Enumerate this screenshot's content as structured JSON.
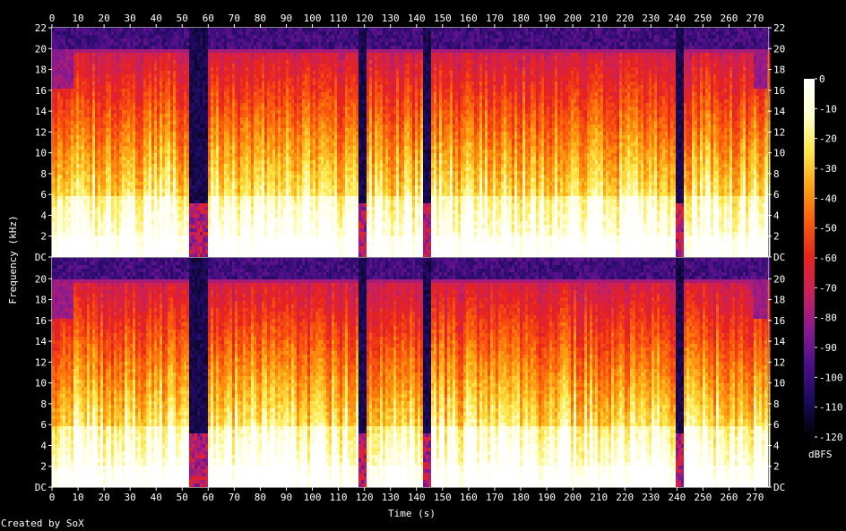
{
  "chart_data": {
    "type": "heatmap",
    "title": "",
    "xlabel": "Time (s)",
    "ylabel": "Frequency (kHz)",
    "xlim": [
      0,
      275
    ],
    "x_ticks": [
      "0",
      "10",
      "20",
      "30",
      "40",
      "50",
      "60",
      "70",
      "80",
      "90",
      "100",
      "110",
      "120",
      "130",
      "140",
      "150",
      "160",
      "170",
      "180",
      "190",
      "200",
      "210",
      "220",
      "230",
      "240",
      "250",
      "260",
      "270"
    ],
    "ylim": [
      0,
      22
    ],
    "y_ticks": [
      "DC",
      "2",
      "4",
      "6",
      "8",
      "10",
      "12",
      "14",
      "16",
      "18",
      "20",
      "22"
    ],
    "panels": [
      {
        "name": "",
        "channel_index": 0
      },
      {
        "name": "",
        "channel_index": 1
      }
    ],
    "colorbar": {
      "label": "dBFS",
      "range": [
        -120,
        0
      ],
      "ticks": [
        "0",
        "-10",
        "-20",
        "-30",
        "-40",
        "-50",
        "-60",
        "-70",
        "-80",
        "-90",
        "-100",
        "-110",
        "-120"
      ],
      "colors": [
        "#000000",
        "#1a0a5a",
        "#4b0f88",
        "#8a1a90",
        "#c8205e",
        "#e8221f",
        "#fb5b0c",
        "#fda312",
        "#fde84a",
        "#ffffcc",
        "#ffffff"
      ]
    },
    "silent_gaps_s": [
      [
        53,
        60
      ],
      [
        118,
        121
      ],
      [
        142,
        146
      ],
      [
        240,
        243
      ]
    ],
    "lowpass_16k_intervals_s": [
      [
        0,
        8
      ],
      [
        53,
        60
      ],
      [
        118,
        121
      ],
      [
        270,
        275
      ]
    ]
  },
  "footer": {
    "credit": "Created by SoX"
  }
}
